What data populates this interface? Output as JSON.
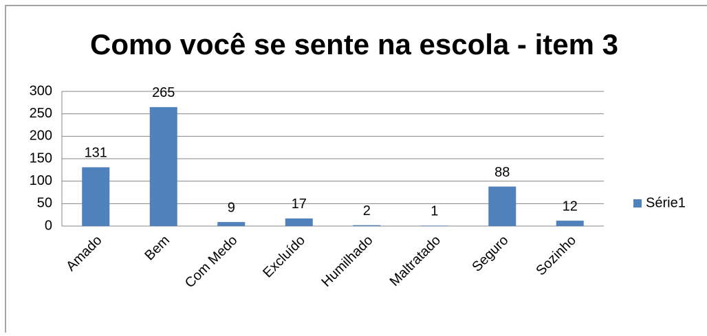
{
  "chart_data": {
    "type": "bar",
    "title": "Como você se sente na escola - item 3",
    "categories": [
      "Amado",
      "Bem",
      "Com Medo",
      "Excluído",
      "Humilhado",
      "Maltratado",
      "Seguro",
      "Sozinho"
    ],
    "series": [
      {
        "name": "Série1",
        "color": "#4f81bd",
        "values": [
          131,
          265,
          9,
          17,
          2,
          1,
          88,
          12
        ]
      }
    ],
    "ylim": [
      0,
      300
    ],
    "yticks": [
      0,
      50,
      100,
      150,
      200,
      250,
      300
    ],
    "grid": true,
    "legend": "right"
  }
}
